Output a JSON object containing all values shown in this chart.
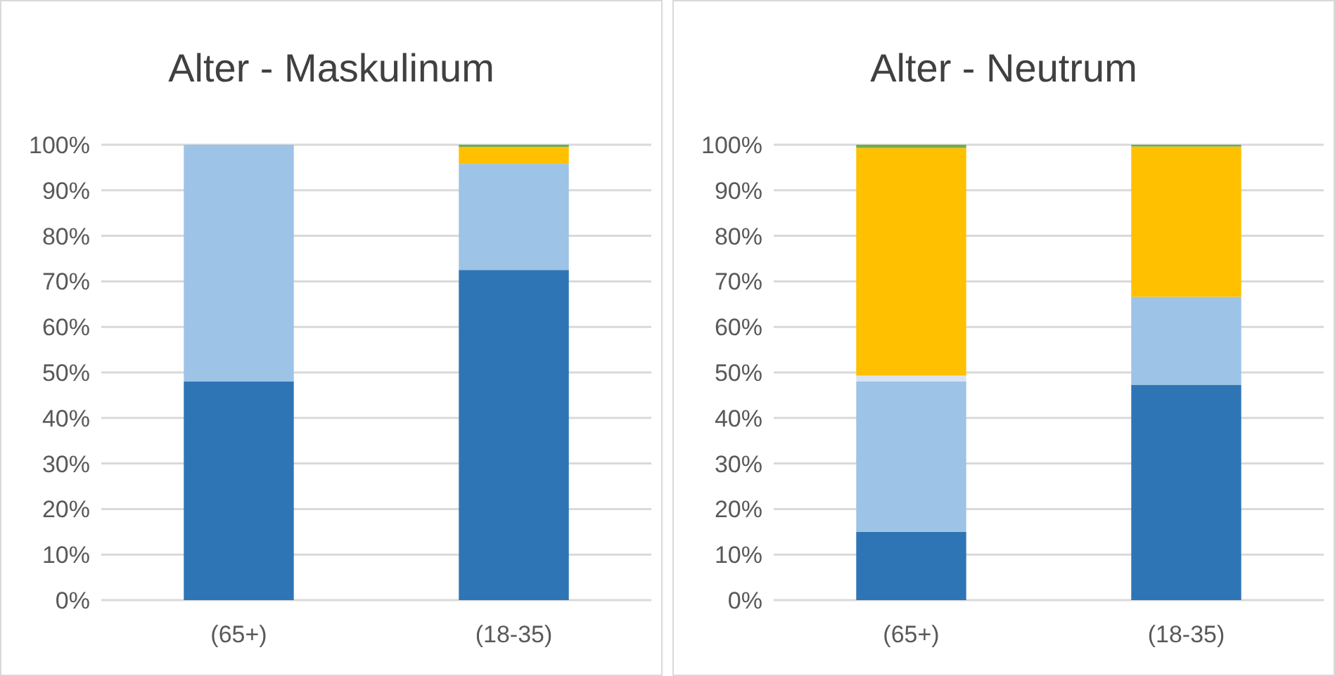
{
  "chart_data": [
    {
      "type": "bar",
      "title": "Alter - Maskulinum",
      "stacked": true,
      "categories": [
        "(65+)",
        "(18-35)"
      ],
      "ylim": [
        0,
        100
      ],
      "yticks": [
        {
          "value": 0,
          "label": "0%"
        },
        {
          "value": 10,
          "label": "10%"
        },
        {
          "value": 20,
          "label": "20%"
        },
        {
          "value": 30,
          "label": "30%"
        },
        {
          "value": 40,
          "label": "40%"
        },
        {
          "value": 50,
          "label": "50%"
        },
        {
          "value": 60,
          "label": "60%"
        },
        {
          "value": 70,
          "label": "70%"
        },
        {
          "value": 80,
          "label": "80%"
        },
        {
          "value": 90,
          "label": "90%"
        },
        {
          "value": 100,
          "label": "100%"
        }
      ],
      "grid": "y",
      "series": [
        {
          "color": "#2e75b6",
          "values": [
            48,
            72.5
          ]
        },
        {
          "color": "#9dc3e6",
          "values": [
            52,
            23.3
          ]
        },
        {
          "color": "#ffc000",
          "values": [
            0,
            3.7
          ]
        },
        {
          "color": "#70ad47",
          "values": [
            0,
            0.5
          ]
        }
      ]
    },
    {
      "type": "bar",
      "title": "Alter - Neutrum",
      "stacked": true,
      "categories": [
        "(65+)",
        "(18-35)"
      ],
      "ylim": [
        0,
        100
      ],
      "yticks": [
        {
          "value": 0,
          "label": "0%"
        },
        {
          "value": 10,
          "label": "10%"
        },
        {
          "value": 20,
          "label": "20%"
        },
        {
          "value": 30,
          "label": "30%"
        },
        {
          "value": 40,
          "label": "40%"
        },
        {
          "value": 50,
          "label": "50%"
        },
        {
          "value": 60,
          "label": "60%"
        },
        {
          "value": 70,
          "label": "70%"
        },
        {
          "value": 80,
          "label": "80%"
        },
        {
          "value": 90,
          "label": "90%"
        },
        {
          "value": 100,
          "label": "100%"
        }
      ],
      "grid": "y",
      "series": [
        {
          "color": "#2e75b6",
          "values": [
            15,
            47.3
          ]
        },
        {
          "color": "#9dc3e6",
          "values": [
            33,
            19.3
          ]
        },
        {
          "color": "#dae3f3",
          "values": [
            1.3,
            0
          ]
        },
        {
          "color": "#ffc000",
          "values": [
            50,
            33
          ]
        },
        {
          "color": "#70ad47",
          "values": [
            0.7,
            0.4
          ]
        }
      ]
    }
  ]
}
